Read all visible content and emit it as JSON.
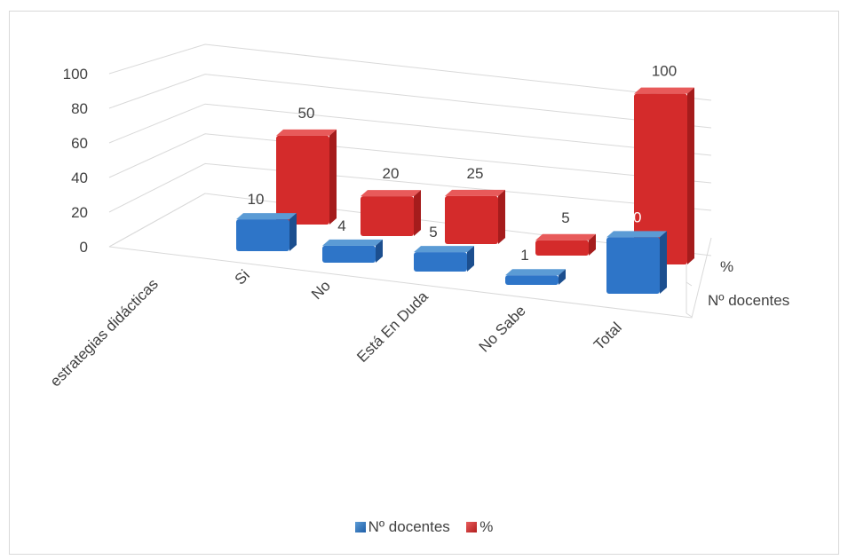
{
  "chart_data": {
    "type": "bar",
    "variant": "3d-column",
    "categories": [
      "estrategias didácticas",
      "Si",
      "No",
      "Está En Duda",
      "No Sabe",
      "Total"
    ],
    "series": [
      {
        "name": "Nº docentes",
        "values": [
          null,
          10,
          4,
          5,
          1,
          20
        ],
        "color": "#2e75c8"
      },
      {
        "name": "%",
        "values": [
          null,
          50,
          20,
          25,
          5,
          100
        ],
        "color": "#d42b2b"
      }
    ],
    "data_labels": [
      [
        "",
        "10",
        "4",
        "5",
        "1",
        "20"
      ],
      [
        "",
        "50",
        "20",
        "25",
        "5",
        "100"
      ]
    ],
    "yticks": [
      "0",
      "20",
      "40",
      "60",
      "80",
      "100"
    ],
    "ylim": [
      0,
      100
    ],
    "depth_labels": [
      "%",
      "Nº docentes"
    ],
    "grid": true,
    "legend_position": "bottom",
    "legend": [
      {
        "label": "Nº docentes",
        "color": "#2e75c8"
      },
      {
        "label": "%",
        "color": "#d42b2b"
      }
    ]
  }
}
